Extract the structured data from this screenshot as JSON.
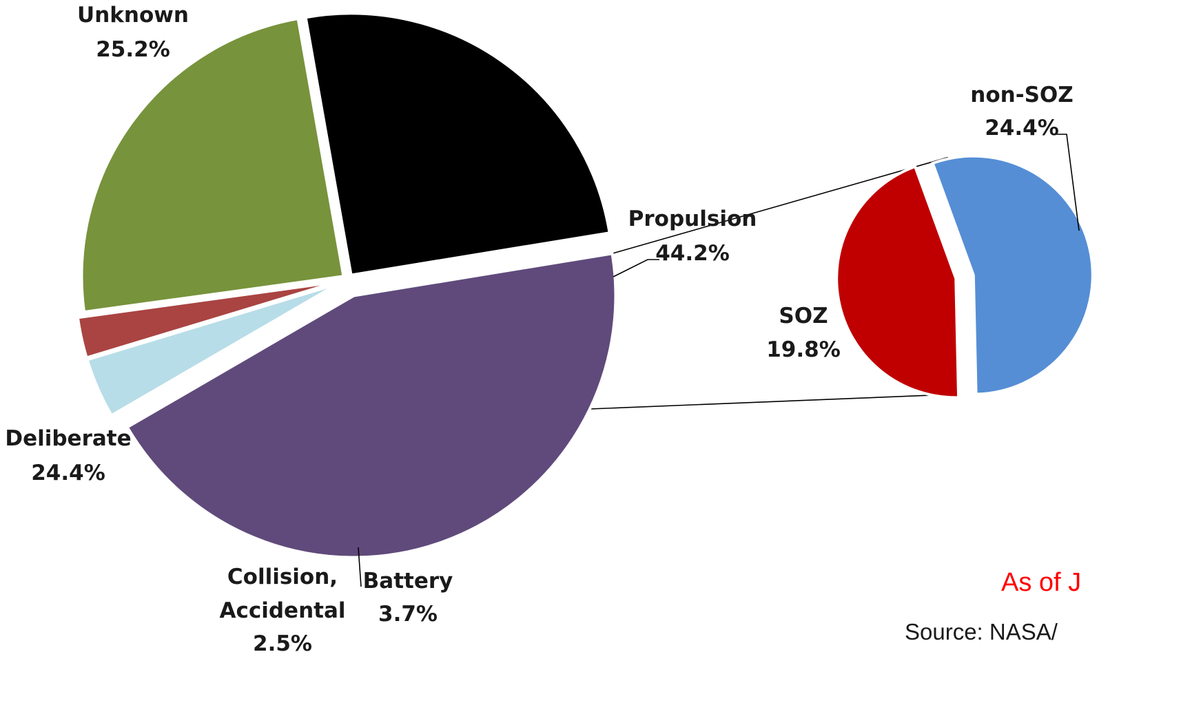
{
  "chart_data": [
    {
      "type": "pie",
      "categories": [
        "Unknown",
        "Propulsion",
        "Battery",
        "Collision, Accidental",
        "Deliberate"
      ],
      "values": [
        25.2,
        44.2,
        3.7,
        2.5,
        24.4
      ],
      "labels": [
        {
          "name": "Unknown",
          "value": "25.2%"
        },
        {
          "name": "Propulsion",
          "value": "44.2%"
        },
        {
          "name": "Battery",
          "value": "3.7%"
        },
        {
          "name_lines": [
            "Collision,",
            "Accidental"
          ],
          "value": "2.5%"
        },
        {
          "name": "Deliberate",
          "value": "24.4%"
        }
      ],
      "colors": [
        "#000000",
        "#604a7b",
        "#b7dde8",
        "#a94442",
        "#77933c"
      ],
      "exploded": true
    },
    {
      "type": "pie",
      "categories": [
        "non-SOZ",
        "SOZ"
      ],
      "values": [
        24.4,
        19.8
      ],
      "labels": [
        {
          "name": "non-SOZ",
          "value": "24.4%"
        },
        {
          "name": "SOZ",
          "value": "19.8%"
        }
      ],
      "colors": [
        "#558ed5",
        "#c00000"
      ],
      "breakdown_of": "Propulsion"
    }
  ],
  "annotations": {
    "as_of": "As of J",
    "source": "Source: NASA/"
  }
}
